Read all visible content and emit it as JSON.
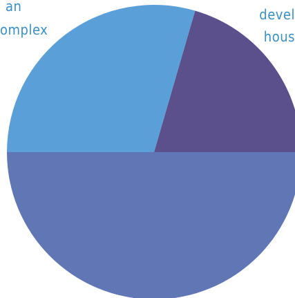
{
  "chart_data": {
    "type": "pie",
    "title": "",
    "slices": [
      {
        "label": "devel\nhous",
        "value": 20.5,
        "color": "#5b4f8c"
      },
      {
        "label": "",
        "value": 29.5,
        "color": "#5b9fd8"
      },
      {
        "label": "an\nomplex",
        "value": 50.0,
        "color": "#6076b5"
      }
    ],
    "legend": "none",
    "start_angle_deg": 0,
    "direction": "counterclockwise-from-east"
  }
}
